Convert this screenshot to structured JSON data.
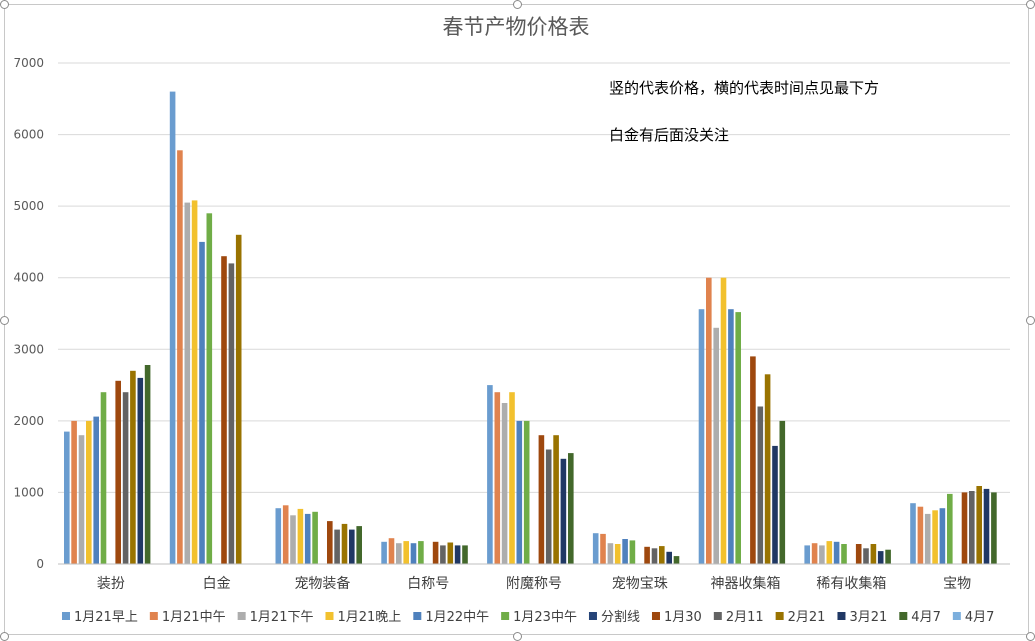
{
  "chart_data": {
    "type": "bar",
    "title": "春节产物价格表",
    "categories": [
      "装扮",
      "白金",
      "宠物装备",
      "白称号",
      "附魔称号",
      "宠物宝珠",
      "神器收集箱",
      "稀有收集箱",
      "宝物"
    ],
    "ylim": [
      0,
      7000
    ],
    "yticks": [
      0,
      1000,
      2000,
      3000,
      4000,
      5000,
      6000,
      7000
    ],
    "grid": true,
    "legend_position": "bottom",
    "annotations": [
      "竖的代表价格，横的代表时间点见最下方",
      "白金有后面没关注"
    ],
    "series": [
      {
        "name": "1月21早上",
        "color": "#6a9ccf",
        "values": [
          1850,
          6600,
          780,
          310,
          2500,
          430,
          3560,
          260,
          850
        ]
      },
      {
        "name": "1月21中午",
        "color": "#e0834e",
        "values": [
          2000,
          5780,
          820,
          360,
          2400,
          420,
          4000,
          290,
          800
        ]
      },
      {
        "name": "1月21下午",
        "color": "#adadad",
        "values": [
          1800,
          5050,
          680,
          290,
          2250,
          290,
          3300,
          260,
          700
        ]
      },
      {
        "name": "1月21晚上",
        "color": "#f2c12e",
        "values": [
          2000,
          5080,
          770,
          320,
          2400,
          280,
          4000,
          320,
          750
        ]
      },
      {
        "name": "1月22中午",
        "color": "#4f81bd",
        "values": [
          2060,
          4500,
          700,
          290,
          2000,
          350,
          3560,
          310,
          780
        ]
      },
      {
        "name": "1月23中午",
        "color": "#70ad47",
        "values": [
          2400,
          4900,
          730,
          320,
          2000,
          330,
          3520,
          280,
          980
        ]
      },
      {
        "name": "分割线",
        "color": "#264478",
        "values": [
          0,
          0,
          0,
          0,
          0,
          0,
          0,
          0,
          0
        ]
      },
      {
        "name": "1月30",
        "color": "#9e480e",
        "values": [
          2560,
          4300,
          600,
          310,
          1800,
          240,
          2900,
          280,
          1000
        ]
      },
      {
        "name": "2月11",
        "color": "#636363",
        "values": [
          2400,
          4200,
          480,
          260,
          1600,
          220,
          2200,
          220,
          1020
        ]
      },
      {
        "name": "2月21",
        "color": "#997300",
        "values": [
          2700,
          4600,
          560,
          300,
          1800,
          250,
          2650,
          280,
          1090
        ]
      },
      {
        "name": "3月21",
        "color": "#203864",
        "values": [
          2600,
          0,
          480,
          260,
          1470,
          170,
          1650,
          180,
          1050
        ]
      },
      {
        "name": "4月7",
        "color": "#43682b",
        "values": [
          2780,
          0,
          530,
          260,
          1550,
          110,
          2000,
          200,
          1000
        ]
      },
      {
        "name": "4月7",
        "color": "#7cafdd",
        "values": [
          0,
          0,
          0,
          0,
          0,
          0,
          0,
          0,
          0
        ]
      }
    ]
  }
}
